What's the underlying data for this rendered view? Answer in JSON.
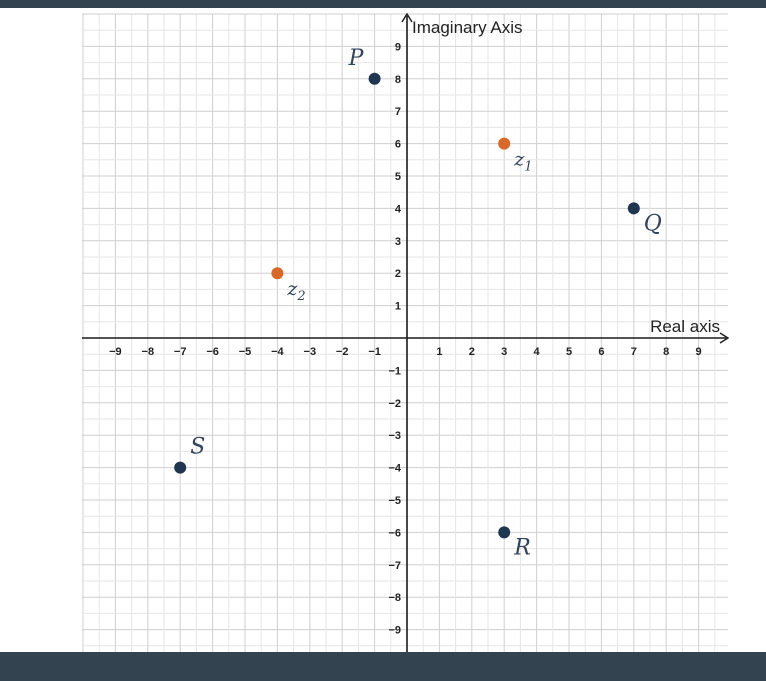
{
  "chart_data": {
    "type": "scatter",
    "x_axis_label": "Real axis",
    "y_axis_label": "Imaginary Axis",
    "x_ticks": [
      "−9",
      "−8",
      "−7",
      "−6",
      "−5",
      "−4",
      "−3",
      "−2",
      "−1",
      "1",
      "2",
      "3",
      "4",
      "5",
      "6",
      "7",
      "8",
      "9"
    ],
    "y_ticks": [
      "9",
      "8",
      "7",
      "6",
      "5",
      "4",
      "3",
      "2",
      "1",
      "−1",
      "−2",
      "−3",
      "−4",
      "−5",
      "−6",
      "−7",
      "−8",
      "−9"
    ],
    "xlim": [
      -10,
      10
    ],
    "ylim": [
      -9.5,
      9.5
    ],
    "grid": true,
    "points": [
      {
        "label": "P",
        "sub": "",
        "x": -1,
        "y": 8,
        "color": "#1f3550",
        "label_pos": "upper-left"
      },
      {
        "label": "Q",
        "sub": "",
        "x": 7,
        "y": 4,
        "color": "#1f3550",
        "label_pos": "lower-right"
      },
      {
        "label": "R",
        "sub": "",
        "x": 3,
        "y": -6,
        "color": "#1f3550",
        "label_pos": "lower-right"
      },
      {
        "label": "S",
        "sub": "",
        "x": -7,
        "y": -4,
        "color": "#1f3550",
        "label_pos": "upper-right"
      },
      {
        "label": "z",
        "sub": "1",
        "x": 3,
        "y": 6,
        "color": "#d9692a",
        "label_pos": "lower-right"
      },
      {
        "label": "z",
        "sub": "2",
        "x": -4,
        "y": 2,
        "color": "#d9692a",
        "label_pos": "lower-right"
      }
    ]
  }
}
